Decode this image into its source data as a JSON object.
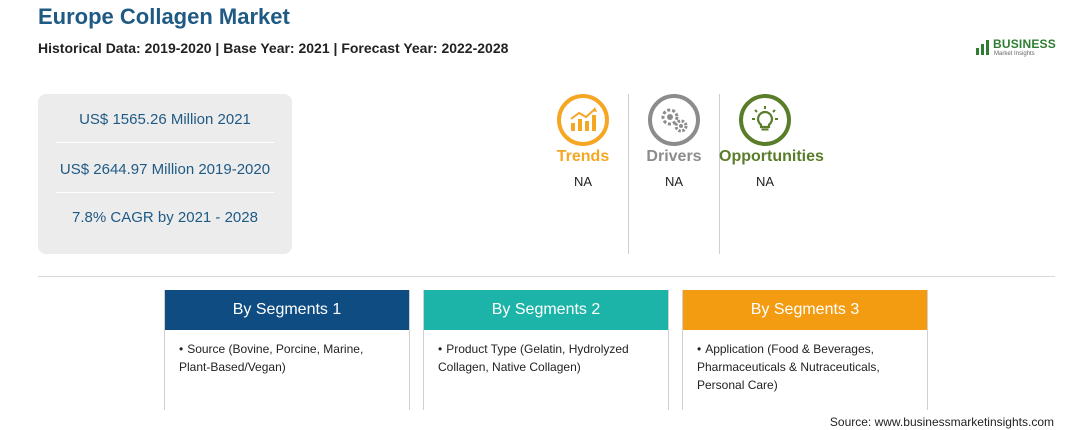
{
  "header": {
    "title": "Europe Collagen Market",
    "subtitle": "Historical Data: 2019-2020 | Base Year: 2021 | Forecast Year: 2022-2028"
  },
  "logo": {
    "word": "BUSINESS",
    "sub": "Market Insights"
  },
  "stats": [
    "US$ 1565.26 Million 2021",
    "US$ 2644.97 Million 2019-2020",
    "7.8% CAGR by 2021 - 2028"
  ],
  "drivers": [
    {
      "label": "Trends",
      "value": "NA",
      "color": "#f5a623",
      "icon": "trend-chart-icon"
    },
    {
      "label": "Drivers",
      "value": "NA",
      "color": "#8c8c8c",
      "icon": "gears-icon"
    },
    {
      "label": "Opportunities",
      "value": "NA",
      "color": "#5a7d2a",
      "icon": "lightbulb-icon"
    }
  ],
  "segments": [
    {
      "title": "By Segments 1",
      "color": "#0f4c81",
      "text": "Source (Bovine, Porcine, Marine, Plant-Based/Vegan)"
    },
    {
      "title": "By Segments 2",
      "color": "#1cb4a8",
      "text": "Product Type (Gelatin, Hydrolyzed Collagen, Native Collagen)"
    },
    {
      "title": "By Segments 3",
      "color": "#f39c12",
      "text": "Application (Food & Beverages, Pharmaceuticals & Nutraceuticals, Personal Care)"
    }
  ],
  "source": "Source: www.businessmarketinsights.com"
}
